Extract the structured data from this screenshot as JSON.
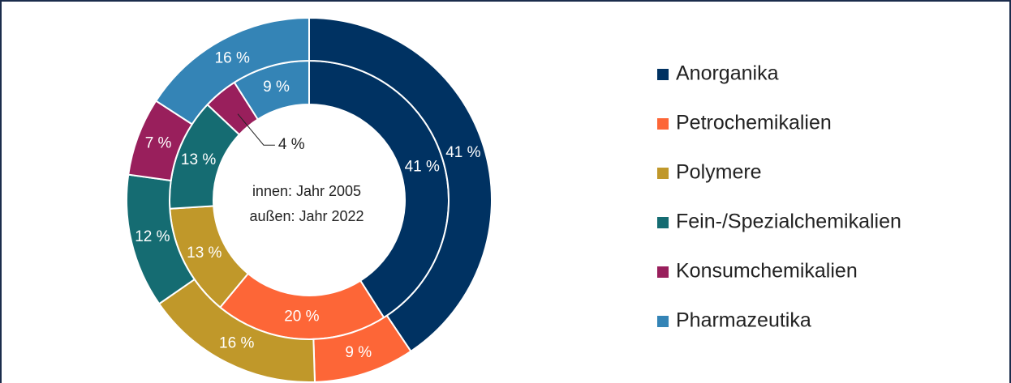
{
  "chart_data": {
    "type": "donut",
    "categories": [
      "Anorganika",
      "Petrochemikalien",
      "Polymere",
      "Fein-/Spezialchemikalien",
      "Konsumchemikalien",
      "Pharmazeutika"
    ],
    "colors": [
      "#003262",
      "#fd6637",
      "#c0982a",
      "#156c72",
      "#991f5c",
      "#3484b6"
    ],
    "series": [
      {
        "values": [
          41,
          20,
          13,
          13,
          4,
          9
        ],
        "value_labels": [
          "41 %",
          "20 %",
          "13 %",
          "13 %",
          "4 %",
          "9 %"
        ]
      },
      {
        "values": [
          41,
          9,
          16,
          12,
          7,
          16
        ],
        "value_labels": [
          "41 %",
          "9 %",
          "16 %",
          "12 %",
          "7 %",
          "16 %"
        ]
      }
    ],
    "annotations": [
      "innen: Jahr 2005",
      "außen: Jahr 2022"
    ]
  }
}
